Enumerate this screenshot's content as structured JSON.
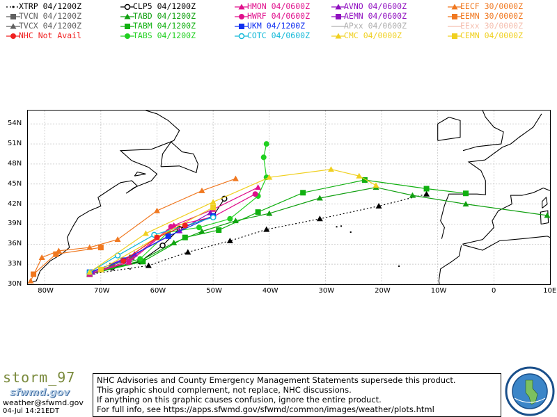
{
  "legend": [
    {
      "id": "xtrp",
      "text": "XTRP 04/1200Z",
      "color": "#000000",
      "marker": "dot",
      "dash": true
    },
    {
      "id": "clp5",
      "text": "CLP5 04/1200Z",
      "color": "#000000",
      "marker": "circle-open"
    },
    {
      "id": "hmon",
      "text": "HMON 04/0600Z",
      "color": "#e0108c",
      "marker": "triangle"
    },
    {
      "id": "avno",
      "text": "AVNO 04/0600Z",
      "color": "#9010c0",
      "marker": "triangle"
    },
    {
      "id": "eecf",
      "text": "EECF 30/0000Z",
      "color": "#f07820",
      "marker": "triangle"
    },
    {
      "id": "tvcn",
      "text": "TVCN 04/1200Z",
      "color": "#606060",
      "marker": "square"
    },
    {
      "id": "tabd",
      "text": "TABD 04/1200Z",
      "color": "#10a010",
      "marker": "triangle"
    },
    {
      "id": "hwrf",
      "text": "HWRF 04/0600Z",
      "color": "#e0108c",
      "marker": "circle"
    },
    {
      "id": "aemn",
      "text": "AEMN 04/0600Z",
      "color": "#9010c0",
      "marker": "square"
    },
    {
      "id": "eemn",
      "text": "EEMN 30/0000Z",
      "color": "#f07820",
      "marker": "square"
    },
    {
      "id": "tvcx",
      "text": "TVCX 04/1200Z",
      "color": "#606060",
      "marker": "triangle"
    },
    {
      "id": "tabm",
      "text": "TABM 04/1200Z",
      "color": "#10b010",
      "marker": "square"
    },
    {
      "id": "ukm",
      "text": "UKM 04/1200Z",
      "color": "#1030f0",
      "marker": "square"
    },
    {
      "id": "apxx",
      "text": "APxx 04/0600Z",
      "color": "#b0b0b0",
      "marker": "none"
    },
    {
      "id": "eexx",
      "text": "EExx 30/0000Z",
      "color": "#f5c0b0",
      "marker": "none"
    },
    {
      "id": "nhc",
      "text": "NHC Not Avail",
      "color": "#f02020",
      "marker": "circle"
    },
    {
      "id": "tabs",
      "text": "TABS 04/1200Z",
      "color": "#20d020",
      "marker": "circle"
    },
    {
      "id": "cotc",
      "text": "COTC 04/0600Z",
      "color": "#10b8d8",
      "marker": "circle-open"
    },
    {
      "id": "cmc",
      "text": "CMC 04/0000Z",
      "color": "#f0d020",
      "marker": "triangle"
    },
    {
      "id": "cemn",
      "text": "CEMN 04/0000Z",
      "color": "#f0d020",
      "marker": "square"
    }
  ],
  "axes": {
    "lon_labels": [
      "80W",
      "70W",
      "60W",
      "50W",
      "40W",
      "30W",
      "20W",
      "10W",
      "0",
      "10E"
    ],
    "lat_labels": [
      "54N",
      "51N",
      "48N",
      "45N",
      "42N",
      "39N",
      "36N",
      "33N",
      "30N"
    ]
  },
  "chart_data": {
    "type": "map",
    "lon_range": [
      -83,
      10
    ],
    "lat_range": [
      30,
      56
    ],
    "tracks": [
      {
        "id": "xtrp",
        "color": "#000000",
        "dash": true,
        "marker": "triangle-filled",
        "points": [
          [
            -72,
            31.5
          ],
          [
            -61.5,
            32.8
          ],
          [
            -54.5,
            34.8
          ],
          [
            -47,
            36.5
          ],
          [
            -40.5,
            38.2
          ],
          [
            -31,
            39.8
          ],
          [
            -20.5,
            41.7
          ],
          [
            -12,
            43.5
          ]
        ]
      },
      {
        "id": "clp5",
        "color": "#000000",
        "marker": "circle-open",
        "points": [
          [
            -68,
            32.5
          ],
          [
            -63,
            33.4
          ],
          [
            -59,
            35.8
          ],
          [
            -56,
            38.3
          ],
          [
            -50,
            40.2
          ],
          [
            -48,
            42.8
          ]
        ]
      },
      {
        "id": "tvcn",
        "color": "#606060",
        "marker": "square",
        "points": [
          [
            -72,
            31.5
          ],
          [
            -68,
            32.8
          ],
          [
            -64.5,
            34
          ]
        ]
      },
      {
        "id": "tabd",
        "color": "#10a010",
        "marker": "triangle-filled",
        "points": [
          [
            -72,
            31.5
          ],
          [
            -63,
            33.5
          ],
          [
            -57,
            36.2
          ],
          [
            -52,
            37.9
          ],
          [
            -46,
            39.5
          ],
          [
            -40,
            40.6
          ],
          [
            -31,
            42.9
          ],
          [
            -21,
            44.5
          ],
          [
            -14.5,
            43.3
          ],
          [
            -5,
            42
          ],
          [
            9.5,
            40.3
          ]
        ]
      },
      {
        "id": "tabm",
        "color": "#10b010",
        "marker": "square",
        "points": [
          [
            -72,
            31.5
          ],
          [
            -62.5,
            33.4
          ],
          [
            -55,
            37
          ],
          [
            -49,
            38.1
          ],
          [
            -42,
            40.8
          ],
          [
            -34,
            43.7
          ],
          [
            -23,
            45.6
          ],
          [
            -12,
            44.3
          ],
          [
            -5,
            43.6
          ]
        ]
      },
      {
        "id": "tabs",
        "color": "#20d020",
        "marker": "circle",
        "points": [
          [
            -72,
            31.5
          ],
          [
            -63,
            33.8
          ],
          [
            -58,
            37.8
          ],
          [
            -52.5,
            38.5
          ],
          [
            -47,
            39.8
          ],
          [
            -42,
            43.2
          ],
          [
            -40.5,
            46
          ],
          [
            -41,
            49
          ],
          [
            -40.5,
            51
          ]
        ]
      },
      {
        "id": "hmon",
        "color": "#e0108c",
        "marker": "triangle-filled",
        "points": [
          [
            -72,
            31.5
          ],
          [
            -65,
            33.3
          ],
          [
            -57,
            38.8
          ],
          [
            -50,
            41.2
          ],
          [
            -42,
            44.5
          ]
        ]
      },
      {
        "id": "hwrf",
        "color": "#e0108c",
        "marker": "circle",
        "points": [
          [
            -72,
            31.5
          ],
          [
            -65,
            33.5
          ],
          [
            -57.5,
            38.6
          ],
          [
            -50,
            40.1
          ],
          [
            -42.5,
            43.5
          ]
        ]
      },
      {
        "id": "avno",
        "color": "#9010c0",
        "marker": "triangle-filled",
        "points": [
          [
            -71.5,
            31.8
          ],
          [
            -64,
            34.5
          ],
          [
            -56,
            38
          ],
          [
            -50.5,
            40.7
          ]
        ]
      },
      {
        "id": "ukm",
        "color": "#1030f0",
        "marker": "square",
        "points": [
          [
            -72,
            31.8
          ],
          [
            -66,
            33.6
          ],
          [
            -58,
            37.2
          ],
          [
            -50,
            40.2
          ]
        ]
      },
      {
        "id": "cotc",
        "color": "#10b8d8",
        "marker": "circle-open",
        "points": [
          [
            -72,
            31.8
          ],
          [
            -67,
            34.3
          ],
          [
            -60.5,
            37.4
          ],
          [
            -50,
            40
          ]
        ]
      },
      {
        "id": "cmc",
        "color": "#f0d020",
        "marker": "triangle-filled",
        "points": [
          [
            -72,
            31.8
          ],
          [
            -62,
            37.6
          ],
          [
            -50,
            42.3
          ],
          [
            -40,
            46
          ],
          [
            -29,
            47.2
          ],
          [
            -24,
            46.2
          ],
          [
            -21,
            44.8
          ]
        ]
      },
      {
        "id": "cemn",
        "color": "#f0d020",
        "marker": "square",
        "points": [
          [
            -70,
            32.2
          ],
          [
            -60,
            37
          ],
          [
            -50,
            41.5
          ]
        ]
      },
      {
        "id": "eecf",
        "color": "#f07820",
        "marker": "triangle-filled",
        "points": [
          [
            -82.5,
            30.5
          ],
          [
            -80.5,
            34
          ],
          [
            -77.5,
            35
          ],
          [
            -72,
            35.5
          ],
          [
            -67,
            36.7
          ],
          [
            -60,
            41
          ],
          [
            -52,
            44
          ],
          [
            -46,
            45.8
          ]
        ]
      },
      {
        "id": "eemn",
        "color": "#f07820",
        "marker": "square",
        "points": [
          [
            -82,
            31.5
          ],
          [
            -78,
            34.5
          ],
          [
            -70,
            35.5
          ]
        ]
      },
      {
        "id": "nhc",
        "color": "#f02020",
        "marker": "circle",
        "points": [
          [
            -66,
            33.5
          ],
          [
            -60,
            37
          ],
          [
            -55,
            38.8
          ]
        ]
      }
    ]
  },
  "footer": {
    "storm_name": "storm_97",
    "logo_text": "sfwmd.gov",
    "email": "weather@sfwmd.gov",
    "timestamp": "04-Jul 14:21EDT",
    "disclaimer": [
      "NHC Advisories and County Emergency Management Statements supersede this product.",
      "This graphic should complement, not replace, NHC discussions.",
      "If anything on this graphic causes confusion, ignore the entire product.",
      "For full info, see  https://apps.sfwmd.gov/sfwmd/common/images/weather/plots.html"
    ],
    "seal_text": "SOUTH FLORIDA WATER MANAGEMENT DISTRICT"
  }
}
